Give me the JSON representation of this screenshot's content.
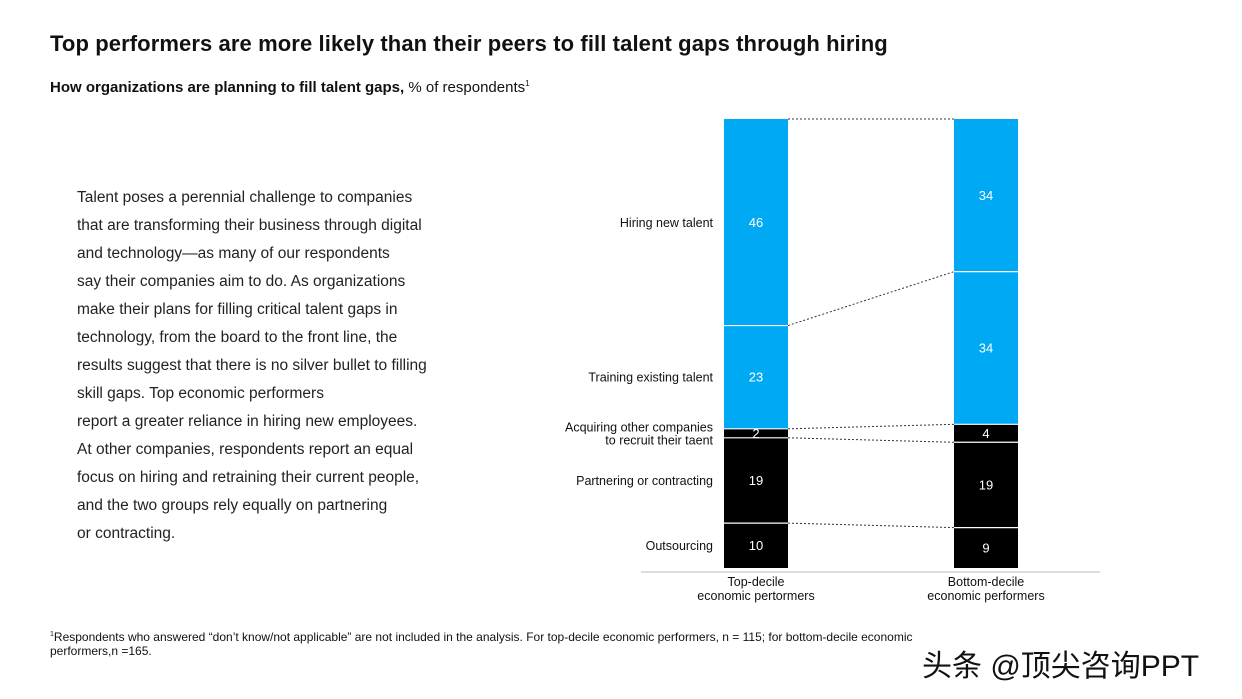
{
  "header": {
    "title": "Top performers are more likely than their peers to fill talent gaps through hiring",
    "subtitle_bold": "How organizations are planning to fill talent gaps,",
    "subtitle_rest": " % of respondents",
    "subtitle_sup": "1"
  },
  "body": {
    "lines": [
      "Talent poses a perennial challenge to companies",
      "that are transforming their business through digital",
      "and technology—as many of our respondents",
      "say their companies aim to do. As organizations",
      "make their plans for filling critical talent gaps in",
      "technology, from the board to the front line, the",
      "results suggest that there is no silver bullet to filling",
      "skill gaps. Top economic performers",
      "report a greater reliance in hiring new employees.",
      "At other companies, respondents report an equal",
      "focus on hiring and retraining their current people,",
      "and the two groups rely equally on partnering",
      "or contracting."
    ]
  },
  "chart_data": {
    "type": "bar",
    "stacked": true,
    "categories": [
      "Top-decile\neconomic pertormers",
      "Bottom-decile\neconomic performers"
    ],
    "series": [
      {
        "name": "Hiring new talent",
        "values": [
          46,
          34
        ],
        "color": "#00a9f4"
      },
      {
        "name": "Training existing talent",
        "values": [
          23,
          34
        ],
        "color": "#00a9f4"
      },
      {
        "name": "Acquiring other companies\nto recruit their taent",
        "values": [
          2,
          4
        ],
        "color": "#000000"
      },
      {
        "name": "Partnering or contracting",
        "values": [
          19,
          19
        ],
        "color": "#000000"
      },
      {
        "name": "Outsourcing",
        "values": [
          10,
          9
        ],
        "color": "#000000"
      }
    ],
    "ylim": [
      0,
      100
    ],
    "legend": "left labels"
  },
  "footnote": {
    "sup": "1",
    "text": "Respondents who answered “don’t know/not applicable” are not included in the analysis. For top-decile economic performers, n = 115; for bottom-decile economic performers,n =165."
  },
  "watermark": "头条 @顶尖咨询PPT"
}
